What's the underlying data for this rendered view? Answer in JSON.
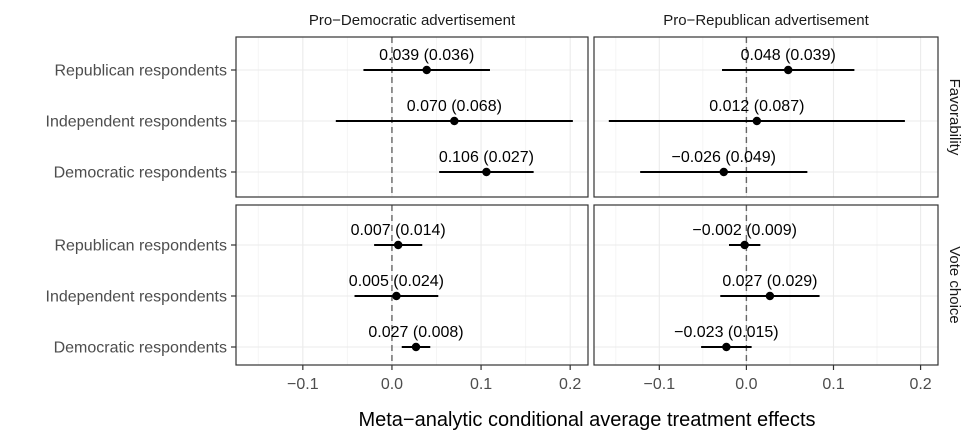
{
  "chart_data": {
    "type": "scatter",
    "subtype": "forest-plot-faceted",
    "xlabel": "Meta−analytic conditional average treatment effects",
    "xlim": [
      -0.175,
      0.22
    ],
    "xticks": [
      -0.1,
      0,
      0.1,
      0.2
    ],
    "xtick_labels": [
      "−0.1",
      "0.0",
      "0.1",
      "0.2"
    ],
    "reference_line": 0,
    "grid": true,
    "columns": [
      "Pro−Democratic advertisement",
      "Pro−Republican advertisement"
    ],
    "rows": [
      "Favorability",
      "Vote choice"
    ],
    "categories": [
      "Republican respondents",
      "Independent respondents",
      "Democratic respondents"
    ],
    "panels": [
      {
        "column": "Pro−Democratic advertisement",
        "row": "Favorability",
        "points": [
          {
            "category": "Republican respondents",
            "estimate": 0.039,
            "se": 0.036,
            "ci": [
              -0.032,
              0.11
            ],
            "label": "0.039 (0.036)"
          },
          {
            "category": "Independent respondents",
            "estimate": 0.07,
            "se": 0.068,
            "ci": [
              -0.063,
              0.203
            ],
            "label": "0.070 (0.068)"
          },
          {
            "category": "Democratic respondents",
            "estimate": 0.106,
            "se": 0.027,
            "ci": [
              0.053,
              0.159
            ],
            "label": "0.106 (0.027)"
          }
        ]
      },
      {
        "column": "Pro−Republican advertisement",
        "row": "Favorability",
        "points": [
          {
            "category": "Republican respondents",
            "estimate": 0.048,
            "se": 0.039,
            "ci": [
              -0.028,
              0.124
            ],
            "label": "0.048 (0.039)"
          },
          {
            "category": "Independent respondents",
            "estimate": 0.012,
            "se": 0.087,
            "ci": [
              -0.158,
              0.182
            ],
            "label": "0.012 (0.087)"
          },
          {
            "category": "Democratic respondents",
            "estimate": -0.026,
            "se": 0.049,
            "ci": [
              -0.122,
              0.07
            ],
            "label": "−0.026 (0.049)"
          }
        ]
      },
      {
        "column": "Pro−Democratic advertisement",
        "row": "Vote choice",
        "points": [
          {
            "category": "Republican respondents",
            "estimate": 0.007,
            "se": 0.014,
            "ci": [
              -0.02,
              0.034
            ],
            "label": "0.007 (0.014)"
          },
          {
            "category": "Independent respondents",
            "estimate": 0.005,
            "se": 0.024,
            "ci": [
              -0.042,
              0.052
            ],
            "label": "0.005 (0.024)"
          },
          {
            "category": "Democratic respondents",
            "estimate": 0.027,
            "se": 0.008,
            "ci": [
              0.011,
              0.043
            ],
            "label": "0.027 (0.008)"
          }
        ]
      },
      {
        "column": "Pro−Republican advertisement",
        "row": "Vote choice",
        "points": [
          {
            "category": "Republican respondents",
            "estimate": -0.002,
            "se": 0.009,
            "ci": [
              -0.02,
              0.016
            ],
            "label": "−0.002 (0.009)"
          },
          {
            "category": "Independent respondents",
            "estimate": 0.027,
            "se": 0.029,
            "ci": [
              -0.03,
              0.084
            ],
            "label": "0.027 (0.029)"
          },
          {
            "category": "Democratic respondents",
            "estimate": -0.023,
            "se": 0.015,
            "ci": [
              -0.052,
              0.006
            ],
            "label": "−0.023 (0.015)"
          }
        ]
      }
    ]
  },
  "colors": {
    "background": "#ffffff",
    "panel_border": "#333333",
    "grid_major": "#ebebeb",
    "grid_minor": "#f5f5f5",
    "reference_line": "#666666",
    "mark": "#000000",
    "text": "#4d4d4d",
    "title_text": "#1a1a1a"
  }
}
